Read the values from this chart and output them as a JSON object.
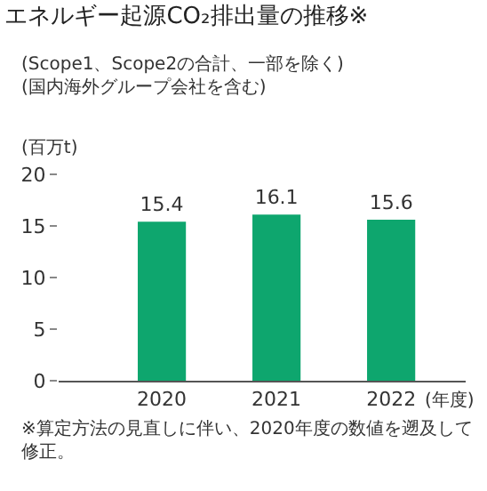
{
  "chart_data": {
    "type": "bar",
    "title": "エネルギー起源CO₂排出量の推移※",
    "subtitle": "(Scope1、Scope2の合計、一部を除く)\n(国内海外グループ会社を含む)",
    "ylabel": "(百万t)",
    "xlabel": "(年度)",
    "categories": [
      "2020",
      "2021",
      "2022"
    ],
    "values": [
      15.4,
      16.1,
      15.6
    ],
    "color": "#0ea66e",
    "ylim": [
      0,
      20
    ],
    "yticks": [
      0,
      5,
      10,
      15,
      20
    ],
    "data_labels": true,
    "legend": false,
    "annotations": [
      "※算定方法の見直しに伴い、2020年度の数値を遡及して修正。"
    ]
  }
}
